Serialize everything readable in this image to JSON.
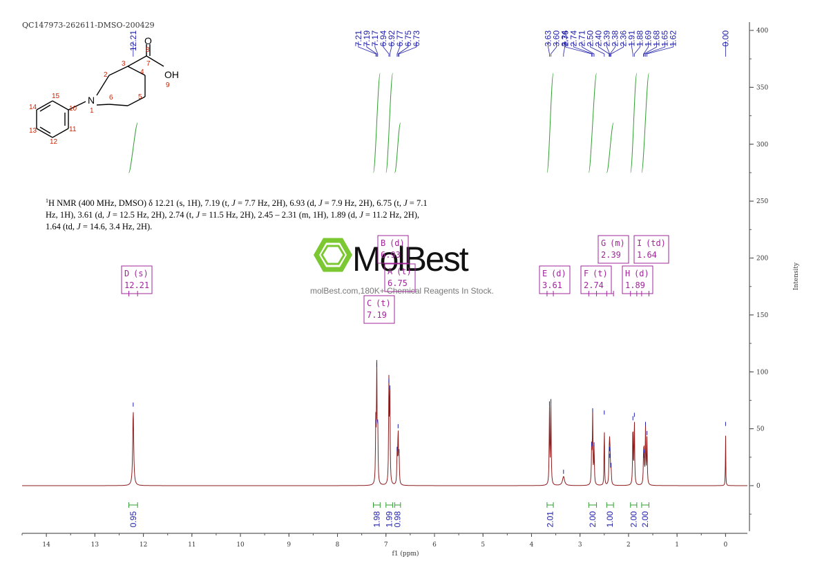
{
  "header": {
    "sample_id": "QC147973-262611-DMSO-200429"
  },
  "description": {
    "nucleus_sup": "1",
    "parts": [
      {
        "t": "H NMR (400 MHz, DMSO) δ 12.21 (s, 1H), 7.19 (t, ",
        "i": false
      },
      {
        "t": "J",
        "i": true
      },
      {
        "t": " = 7.7 Hz, 2H), 6.93 (d, ",
        "i": false
      },
      {
        "t": "J",
        "i": true
      },
      {
        "t": " = 7.9 Hz, 2H), 6.75 (t, ",
        "i": false
      },
      {
        "t": "J",
        "i": true
      },
      {
        "t": " = 7.1 Hz, 1H), 3.61 (d, ",
        "i": false
      },
      {
        "t": "J",
        "i": true
      },
      {
        "t": " = 12.5 Hz, 2H), 2.74 (t, ",
        "i": false
      },
      {
        "t": "J",
        "i": true
      },
      {
        "t": " = 11.5 Hz, 2H), 2.45 – 2.31 (m, 1H), 1.89 (d, ",
        "i": false
      },
      {
        "t": "J",
        "i": true
      },
      {
        "t": " = 11.2 Hz, 2H), 1.64 (td, ",
        "i": false
      },
      {
        "t": "J",
        "i": true
      },
      {
        "t": " = 14.6, 3.4 Hz, 2H).",
        "i": false
      }
    ]
  },
  "watermark": {
    "brand": "MolBest",
    "tagline": "molBest.com,180K+ Chemical Reagents In Stock."
  },
  "molecule": {
    "atoms": [
      {
        "id": "N",
        "label": "N"
      },
      {
        "id": "O",
        "label": "O"
      },
      {
        "id": "OH",
        "label": "OH"
      }
    ],
    "numbers": [
      "1",
      "2",
      "3",
      "4",
      "5",
      "6",
      "7",
      "8",
      "9",
      "10",
      "11",
      "12",
      "13",
      "14",
      "15"
    ]
  },
  "colors": {
    "spectrum": "#8b1a1a",
    "integral": "#2e9e2e",
    "peak_label": "#1a1aa8",
    "multiplet_box": "#a0259a",
    "watermark_logo": "#7cc832"
  },
  "chart_data": {
    "type": "line",
    "xlabel": "f1 (ppm)",
    "ylabel": "Intensity",
    "xlim": [
      14.5,
      -0.45
    ],
    "ylim": [
      -40,
      405
    ],
    "x_ticks": [
      14,
      13,
      12,
      11,
      10,
      9,
      8,
      7,
      6,
      5,
      4,
      3,
      2,
      1,
      0
    ],
    "y_ticks": [
      0,
      50,
      100,
      150,
      200,
      250,
      300,
      350,
      400
    ],
    "peaks": [
      {
        "x": 12.21,
        "h": 67,
        "w": 0.012
      },
      {
        "x": 7.21,
        "h": 52,
        "w": 0.007
      },
      {
        "x": 7.19,
        "h": 102,
        "w": 0.007
      },
      {
        "x": 7.17,
        "h": 52,
        "w": 0.007
      },
      {
        "x": 6.94,
        "h": 88,
        "w": 0.007
      },
      {
        "x": 6.92,
        "h": 82,
        "w": 0.007
      },
      {
        "x": 6.77,
        "h": 28,
        "w": 0.007
      },
      {
        "x": 6.75,
        "h": 48,
        "w": 0.007
      },
      {
        "x": 6.73,
        "h": 26,
        "w": 0.007
      },
      {
        "x": 3.63,
        "h": 68,
        "w": 0.007
      },
      {
        "x": 3.6,
        "h": 70,
        "w": 0.007
      },
      {
        "x": 3.34,
        "h": 8,
        "w": 0.025
      },
      {
        "x": 2.76,
        "h": 32,
        "w": 0.007
      },
      {
        "x": 2.74,
        "h": 62,
        "w": 0.007
      },
      {
        "x": 2.71,
        "h": 32,
        "w": 0.007
      },
      {
        "x": 2.5,
        "h": 60,
        "w": 0.005
      },
      {
        "x": 2.4,
        "h": 22,
        "w": 0.007
      },
      {
        "x": 2.39,
        "h": 28,
        "w": 0.007
      },
      {
        "x": 2.38,
        "h": 22,
        "w": 0.007
      },
      {
        "x": 2.36,
        "h": 14,
        "w": 0.007
      },
      {
        "x": 1.91,
        "h": 55,
        "w": 0.007
      },
      {
        "x": 1.88,
        "h": 58,
        "w": 0.007
      },
      {
        "x": 1.69,
        "h": 22,
        "w": 0.007
      },
      {
        "x": 1.68,
        "h": 26,
        "w": 0.007
      },
      {
        "x": 1.65,
        "h": 50,
        "w": 0.007
      },
      {
        "x": 1.62,
        "h": 42,
        "w": 0.007
      },
      {
        "x": 0.0,
        "h": 50,
        "w": 0.004
      }
    ],
    "peak_labels": [
      "12.21",
      "7.21",
      "7.19",
      "7.17",
      "6.94",
      "6.92",
      "6.77",
      "6.75",
      "6.73",
      "3.63",
      "3.60",
      "3.34",
      "2.76",
      "2.74",
      "2.71",
      "2.50",
      "2.40",
      "2.39",
      "2.38",
      "2.36",
      "1.91",
      "1.88",
      "1.69",
      "1.68",
      "1.65",
      "1.62",
      "0.00"
    ],
    "integrals": [
      {
        "x1": 12.3,
        "x2": 12.12,
        "value": "0.95",
        "rise": 45
      },
      {
        "x1": 7.26,
        "x2": 7.12,
        "value": "1.98",
        "rise": 90
      },
      {
        "x1": 7.0,
        "x2": 6.86,
        "value": "1.99",
        "rise": 90
      },
      {
        "x1": 6.82,
        "x2": 6.7,
        "value": "0.98",
        "rise": 45
      },
      {
        "x1": 3.68,
        "x2": 3.55,
        "value": "2.01",
        "rise": 90
      },
      {
        "x1": 2.82,
        "x2": 2.66,
        "value": "2.00",
        "rise": 90
      },
      {
        "x1": 2.45,
        "x2": 2.31,
        "value": "1.00",
        "rise": 45
      },
      {
        "x1": 1.96,
        "x2": 1.83,
        "value": "2.00",
        "rise": 90
      },
      {
        "x1": 1.73,
        "x2": 1.58,
        "value": "2.00",
        "rise": 90
      }
    ],
    "multiplets": [
      {
        "id": "D",
        "mult": "(s)",
        "shift": "12.21"
      },
      {
        "id": "C",
        "mult": "(t)",
        "shift": "7.19"
      },
      {
        "id": "B",
        "mult": "(d)",
        "shift": "6.93"
      },
      {
        "id": "A",
        "mult": "(t)",
        "shift": "6.75"
      },
      {
        "id": "E",
        "mult": "(d)",
        "shift": "3.61"
      },
      {
        "id": "F",
        "mult": "(t)",
        "shift": "2.74"
      },
      {
        "id": "G",
        "mult": "(m)",
        "shift": "2.39"
      },
      {
        "id": "H",
        "mult": "(d)",
        "shift": "1.89"
      },
      {
        "id": "I",
        "mult": "(td)",
        "shift": "1.64"
      }
    ]
  }
}
